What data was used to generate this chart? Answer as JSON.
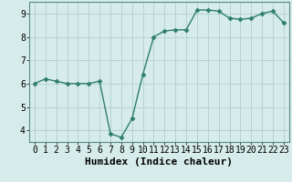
{
  "x": [
    0,
    1,
    2,
    3,
    4,
    5,
    6,
    7,
    8,
    9,
    10,
    11,
    12,
    13,
    14,
    15,
    16,
    17,
    18,
    19,
    20,
    21,
    22,
    23
  ],
  "y": [
    6.0,
    6.2,
    6.1,
    6.0,
    6.0,
    6.0,
    6.1,
    3.85,
    3.7,
    4.5,
    6.4,
    8.0,
    8.25,
    8.3,
    8.3,
    9.15,
    9.15,
    9.1,
    8.8,
    8.75,
    8.8,
    9.0,
    9.1,
    8.6
  ],
  "xlabel": "Humidex (Indice chaleur)",
  "xlim": [
    -0.5,
    23.5
  ],
  "ylim": [
    3.5,
    9.5
  ],
  "yticks": [
    4,
    5,
    6,
    7,
    8,
    9
  ],
  "xticks": [
    0,
    1,
    2,
    3,
    4,
    5,
    6,
    7,
    8,
    9,
    10,
    11,
    12,
    13,
    14,
    15,
    16,
    17,
    18,
    19,
    20,
    21,
    22,
    23
  ],
  "line_color": "#2e7d6e",
  "marker": "D",
  "marker_size": 2.5,
  "bg_color": "#d6ecea",
  "grid_color": "#b0cfcc",
  "fig_bg": "#d6ecea",
  "xlabel_fontsize": 8,
  "tick_fontsize": 7,
  "line_width": 1.0
}
